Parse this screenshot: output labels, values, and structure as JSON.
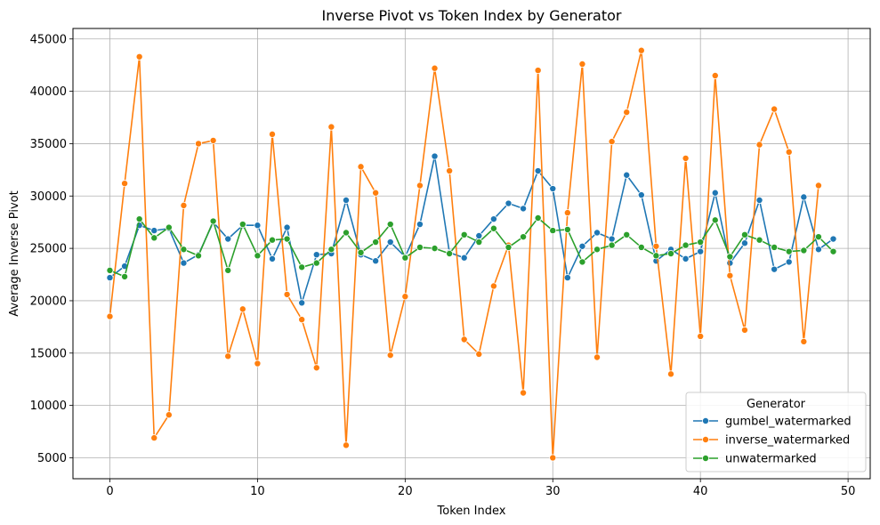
{
  "chart_data": {
    "type": "line",
    "title": "Inverse Pivot vs Token Index by Generator",
    "xlabel": "Token Index",
    "ylabel": "Average Inverse Pivot",
    "xlim": [
      -2.5,
      51.5
    ],
    "ylim": [
      3000,
      46000
    ],
    "xticks": [
      0,
      10,
      20,
      30,
      40,
      50
    ],
    "yticks": [
      5000,
      10000,
      15000,
      20000,
      25000,
      30000,
      35000,
      40000,
      45000
    ],
    "grid": true,
    "legend": {
      "title": "Generator",
      "placement": "lower-right"
    },
    "x": [
      0,
      1,
      2,
      3,
      4,
      5,
      6,
      7,
      8,
      9,
      10,
      11,
      12,
      13,
      14,
      15,
      16,
      17,
      18,
      19,
      20,
      21,
      22,
      23,
      24,
      25,
      26,
      27,
      28,
      29,
      30,
      31,
      32,
      33,
      34,
      35,
      36,
      37,
      38,
      39,
      40,
      41,
      42,
      43,
      44,
      45,
      46,
      47,
      48,
      49
    ],
    "series": [
      {
        "name": "gumbel_watermarked",
        "color": "#1f77b4",
        "values": [
          22200,
          23300,
          27200,
          26700,
          26900,
          23600,
          24400,
          27500,
          25900,
          27200,
          27200,
          24000,
          27000,
          19800,
          24400,
          24500,
          29600,
          24400,
          23800,
          25600,
          24200,
          27300,
          33800,
          24600,
          24100,
          26200,
          27800,
          29300,
          28800,
          32400,
          30700,
          22200,
          25200,
          26500,
          25900,
          32000,
          30100,
          23800,
          24900,
          24000,
          24700,
          30300,
          23600,
          25500,
          29600,
          23000,
          23700,
          29900,
          24900,
          25900
        ]
      },
      {
        "name": "inverse_watermarked",
        "color": "#ff7f0e",
        "values": [
          18500,
          31200,
          43300,
          6900,
          9100,
          29100,
          35000,
          35300,
          14700,
          19200,
          14000,
          35900,
          20600,
          18200,
          13600,
          36600,
          6200,
          32800,
          30300,
          14800,
          20400,
          31000,
          42200,
          32400,
          16300,
          14900,
          21400,
          25300,
          11200,
          42000,
          5000,
          28400,
          42600,
          14600,
          35200,
          38000,
          43900,
          25200,
          13000,
          33600,
          16600,
          41500,
          22400,
          17200,
          34900,
          38300,
          34200,
          16100,
          31000,
          null
        ]
      },
      {
        "name": "unwatermarked",
        "color": "#2ca02c",
        "values": [
          22900,
          22300,
          27800,
          26000,
          27000,
          24900,
          24300,
          27600,
          22900,
          27300,
          24300,
          25800,
          25900,
          23200,
          23600,
          24900,
          26500,
          24600,
          25600,
          27300,
          24100,
          25100,
          25000,
          24500,
          26300,
          25600,
          26900,
          25100,
          26100,
          27900,
          26700,
          26800,
          23700,
          24900,
          25300,
          26300,
          25100,
          24300,
          24500,
          25300,
          25600,
          27700,
          24200,
          26300,
          25800,
          25100,
          24700,
          24800,
          26100,
          24700
        ]
      }
    ]
  }
}
